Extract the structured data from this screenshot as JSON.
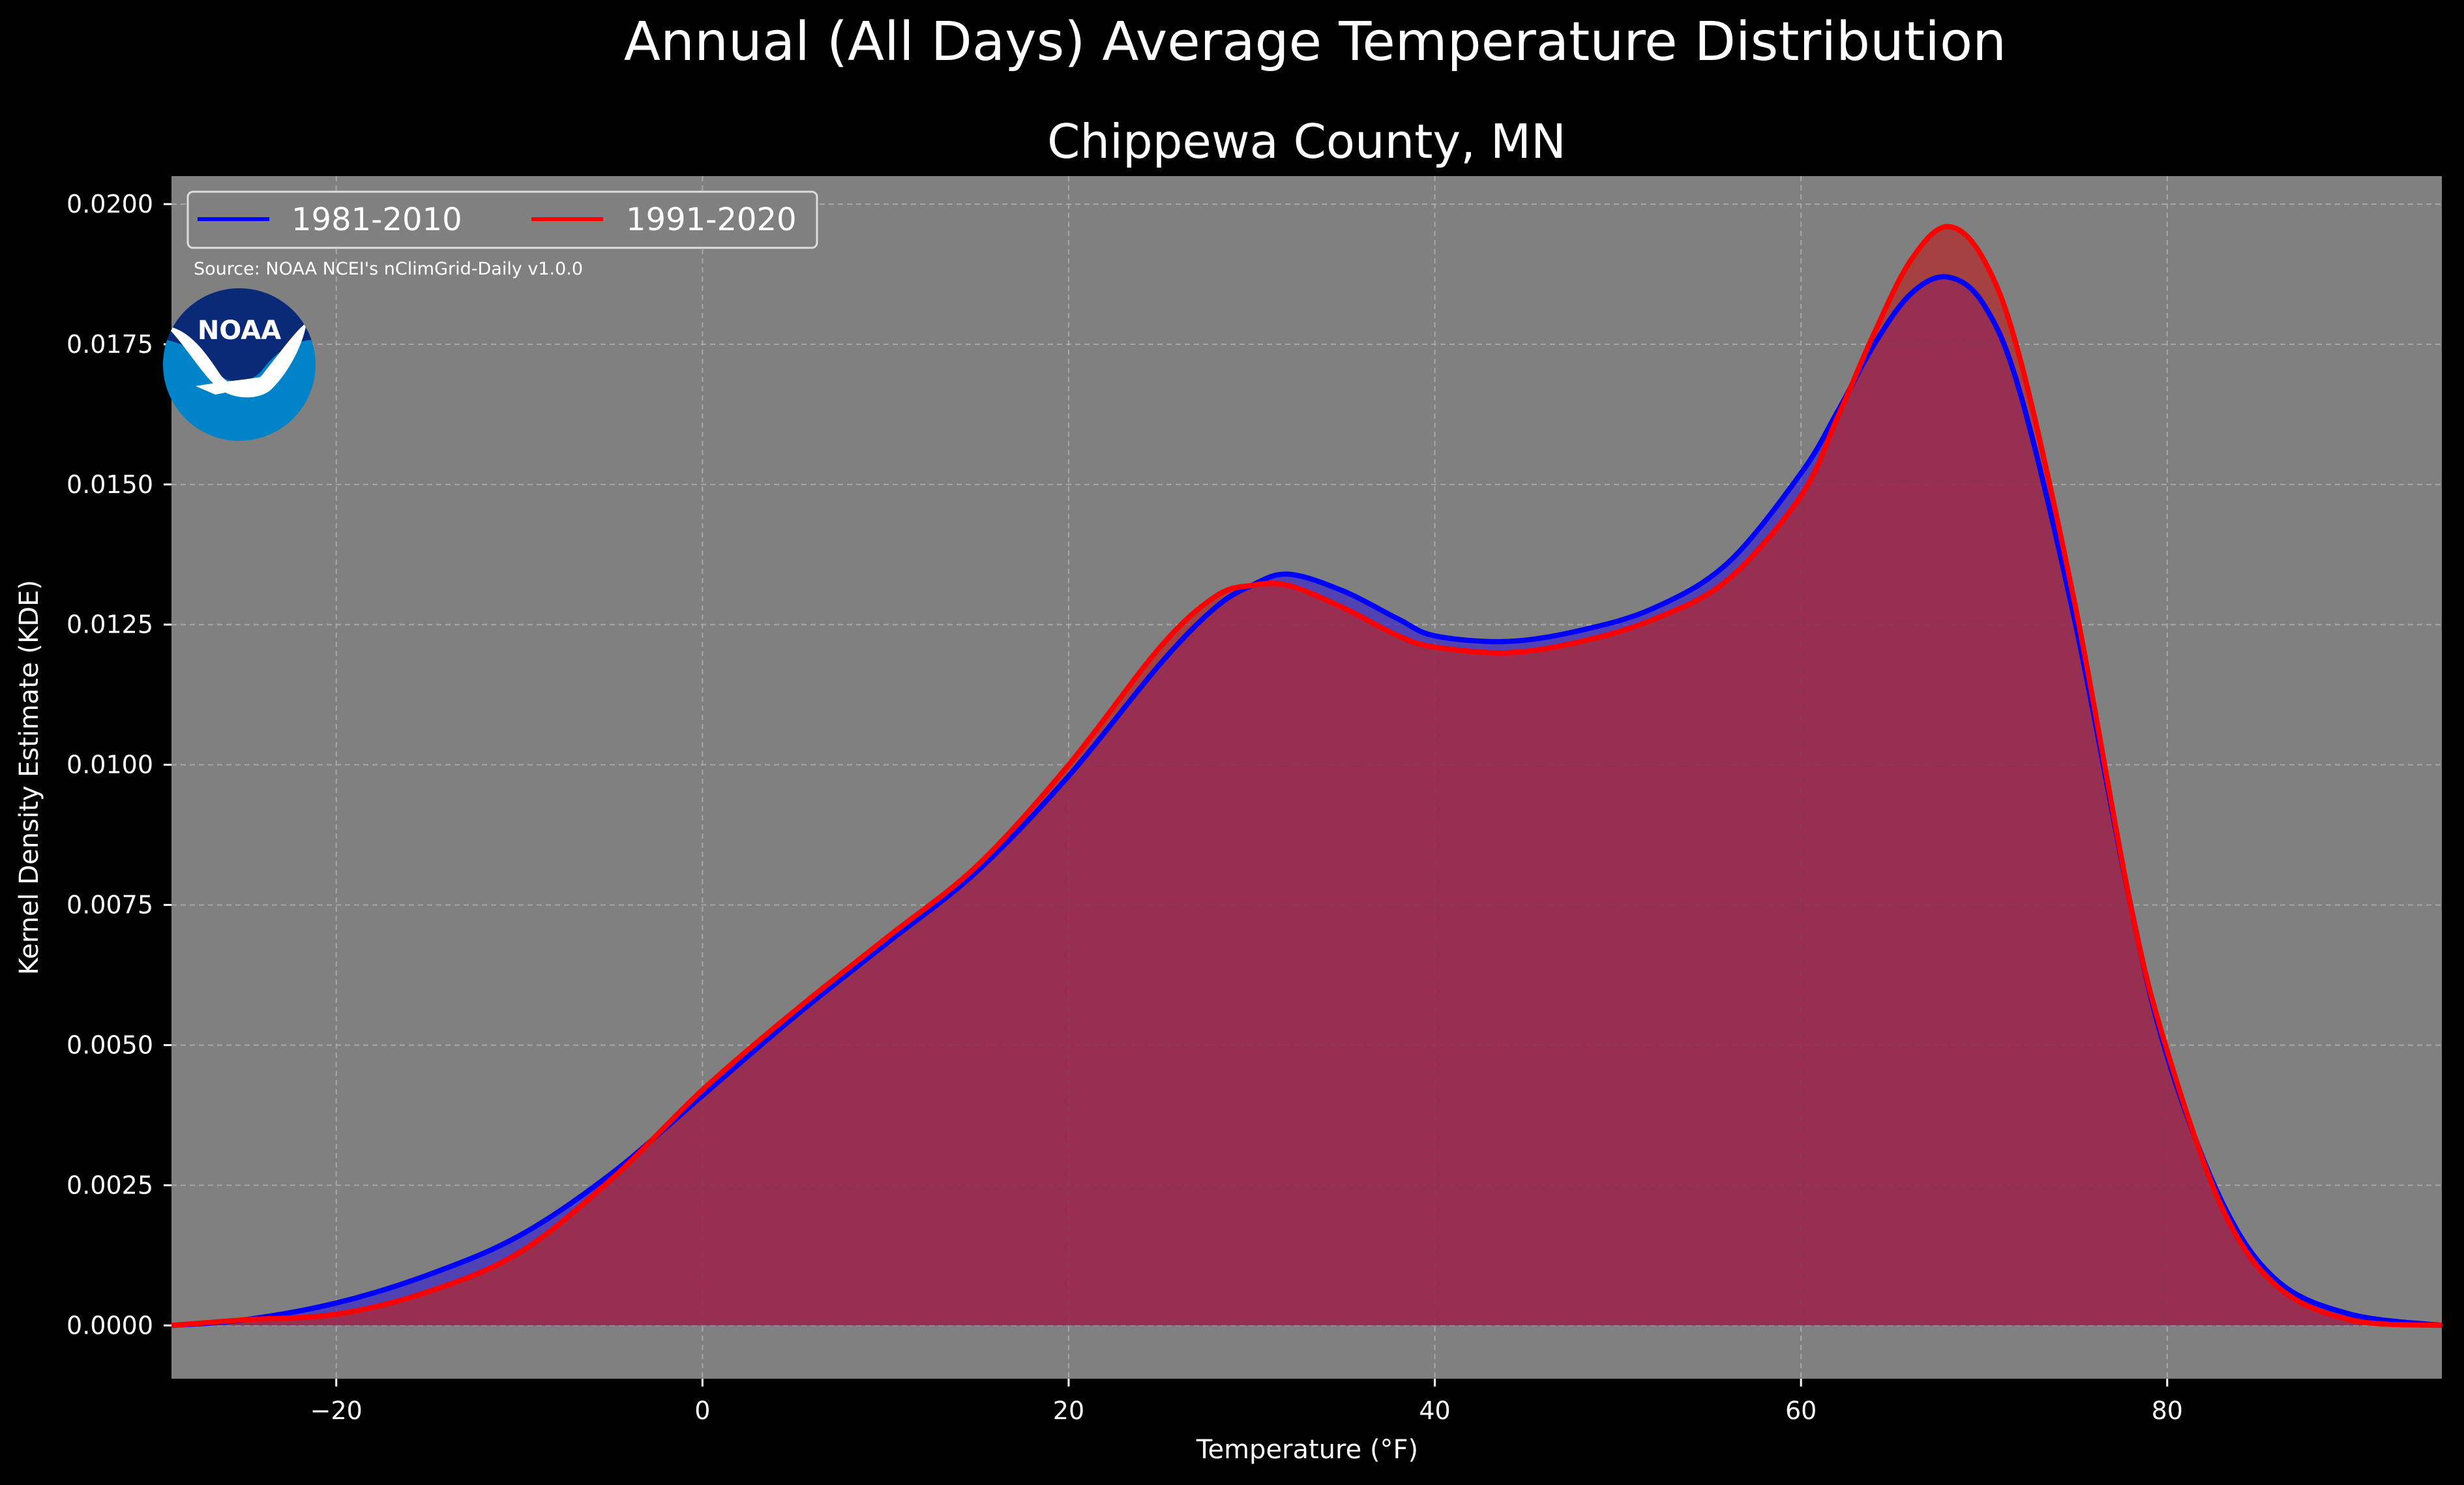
{
  "chart_data": {
    "type": "area",
    "suptitle": "Annual (All Days) Average Temperature Distribution",
    "title": "Chippewa County, MN",
    "xlabel": "Temperature (°F)",
    "ylabel": "Kernel Density Estimate (KDE)",
    "xlim": [
      -29,
      95
    ],
    "ylim": [
      -0.00095,
      0.0205
    ],
    "xticks": [
      -20,
      0,
      20,
      40,
      60,
      80
    ],
    "xtick_labels": [
      "−20",
      "0",
      "20",
      "40",
      "60",
      "80"
    ],
    "yticks": [
      0,
      0.0025,
      0.005,
      0.0075,
      0.01,
      0.0125,
      0.015,
      0.0175,
      0.02
    ],
    "ytick_labels": [
      "0.0000",
      "0.0025",
      "0.0050",
      "0.0075",
      "0.0100",
      "0.0125",
      "0.0150",
      "0.0175",
      "0.0200"
    ],
    "grid": true,
    "legend_position": "top-left",
    "source_note": "Source: NOAA NCEI's nClimGrid-Daily v1.0.0",
    "logo_text": "NOAA",
    "series": [
      {
        "name": "1981-2010",
        "color": "#0000ff",
        "fill": "#3c28c8",
        "x": [
          -29,
          -25,
          -20,
          -15,
          -10,
          -5,
          0,
          5,
          10,
          15,
          20,
          25,
          28,
          30,
          32,
          35,
          38,
          40,
          44,
          48,
          52,
          56,
          60,
          62,
          64,
          66,
          68,
          70,
          72,
          75,
          78,
          80,
          83,
          86,
          90,
          95
        ],
        "y": [
          0.0,
          0.0001,
          0.0004,
          0.0009,
          0.0016,
          0.0027,
          0.0041,
          0.0055,
          0.0068,
          0.0081,
          0.0098,
          0.0118,
          0.0128,
          0.0132,
          0.0134,
          0.0131,
          0.0126,
          0.0123,
          0.0122,
          0.0124,
          0.0128,
          0.0136,
          0.0152,
          0.0163,
          0.0175,
          0.0184,
          0.0187,
          0.0182,
          0.0166,
          0.0125,
          0.0075,
          0.0048,
          0.0022,
          0.0008,
          0.0002,
          0.0
        ]
      },
      {
        "name": "1991-2020",
        "color": "#ff0000",
        "fill": "#b42828",
        "x": [
          -29,
          -25,
          -20,
          -15,
          -10,
          -5,
          0,
          5,
          10,
          15,
          20,
          25,
          28,
          30,
          32,
          35,
          38,
          40,
          44,
          48,
          52,
          56,
          60,
          62,
          64,
          66,
          68,
          70,
          72,
          75,
          78,
          80,
          83,
          86,
          90,
          95
        ],
        "y": [
          0.0,
          0.0001,
          0.0002,
          0.0006,
          0.0013,
          0.0026,
          0.0042,
          0.0056,
          0.0069,
          0.0082,
          0.01,
          0.0121,
          0.013,
          0.0132,
          0.0132,
          0.0128,
          0.0123,
          0.0121,
          0.012,
          0.0122,
          0.0126,
          0.0133,
          0.0148,
          0.0162,
          0.0177,
          0.019,
          0.0196,
          0.019,
          0.0172,
          0.0128,
          0.0075,
          0.0049,
          0.0021,
          0.0007,
          0.0001,
          0.0
        ]
      }
    ]
  }
}
